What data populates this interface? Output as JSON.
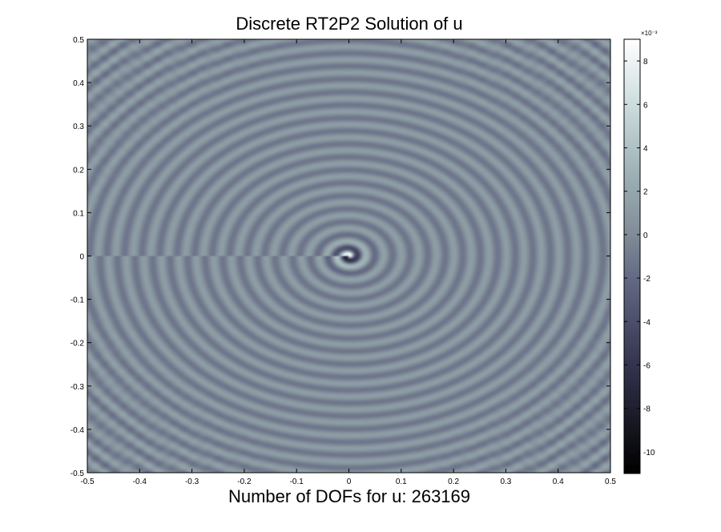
{
  "chart_data": {
    "type": "heatmap",
    "title": "Discrete RT2P2 Solution of u",
    "xlabel": "Number of DOFs for u: 263169",
    "ylabel": "",
    "xlim": [
      -0.5,
      0.5
    ],
    "ylim": [
      -0.5,
      0.5
    ],
    "x_ticks": [
      "-0.5",
      "-0.4",
      "-0.3",
      "-0.2",
      "-0.1",
      "0",
      "0.1",
      "0.2",
      "0.3",
      "0.4",
      "0.5"
    ],
    "y_ticks": [
      "0.5",
      "0.4",
      "0.3",
      "0.2",
      "0.1",
      "0",
      "-0.1",
      "-0.2",
      "-0.3",
      "-0.4",
      "-0.5"
    ],
    "colorbar": {
      "range": [
        -0.011,
        0.009
      ],
      "ticks": [
        "8",
        "6",
        "4",
        "2",
        "0",
        "-2",
        "-4",
        "-6",
        "-8",
        "-10"
      ],
      "exponent_label": "×10⁻³",
      "colormap": "bone"
    },
    "field": {
      "description_values": "concentric radial wave pattern centred at (0, 0), peak magnitude near centre",
      "center": [
        0,
        0
      ],
      "background_value": 0.0
    },
    "grid": false
  }
}
